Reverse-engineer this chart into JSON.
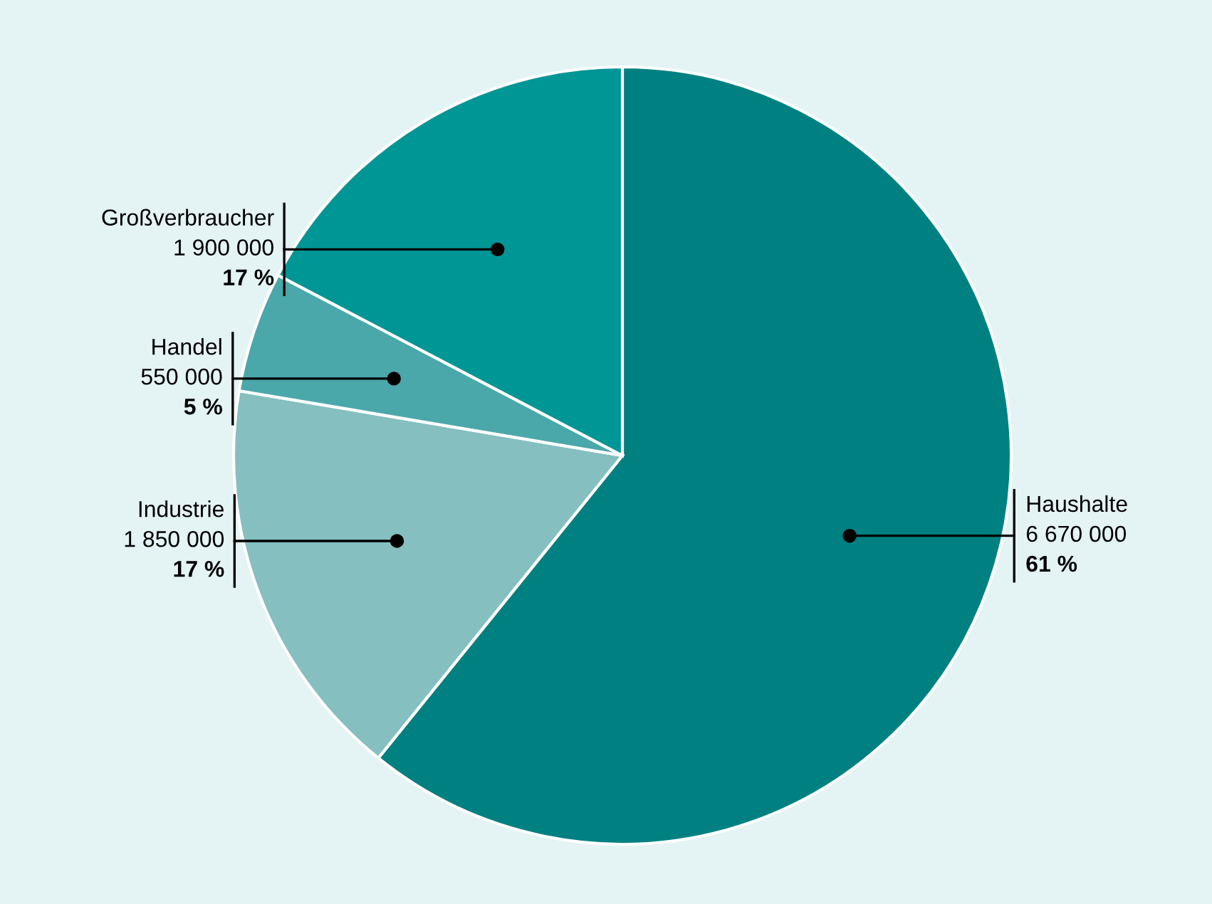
{
  "chart_data": {
    "type": "pie",
    "categories": [
      "Haushalte",
      "Industrie",
      "Handel",
      "Großverbraucher"
    ],
    "values": [
      6670000,
      1850000,
      550000,
      1900000
    ],
    "colors": [
      "#008080",
      "#85bfc0",
      "#4aa8aa",
      "#009696"
    ],
    "value_labels": [
      "6 670 000\n61 %",
      "1 850 000\n17 %",
      "550 000\n5 %",
      "1 900 000\n17 %"
    ]
  }
}
